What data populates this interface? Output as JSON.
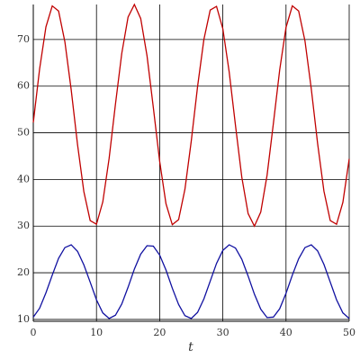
{
  "chart_data": {
    "type": "line",
    "x_label": "t",
    "x": [
      0,
      1,
      2,
      3,
      4,
      5,
      6,
      7,
      8,
      9,
      10,
      11,
      12,
      13,
      14,
      15,
      16,
      17,
      18,
      19,
      20,
      21,
      22,
      23,
      24,
      25,
      26,
      27,
      28,
      29,
      30,
      31,
      32,
      33,
      34,
      35,
      36,
      37,
      38,
      39,
      40,
      41,
      42,
      43,
      44,
      45,
      46,
      47,
      48,
      49,
      50
    ],
    "series": [
      {
        "color": "#c00000",
        "values": [
          52.2,
          63.7,
          72.7,
          77.2,
          76.1,
          69.5,
          59.2,
          47.5,
          37.4,
          31.2,
          30.4,
          35.2,
          44.5,
          56.1,
          67.0,
          74.8,
          77.5,
          74.5,
          66.5,
          55.4,
          43.9,
          34.8,
          30.3,
          31.4,
          37.9,
          48.2,
          59.9,
          70.0,
          76.3,
          77.1,
          72.3,
          63.1,
          51.6,
          40.5,
          32.7,
          30.0,
          33.0,
          40.9,
          52.0,
          63.5,
          72.6,
          77.2,
          76.1,
          69.7,
          59.4,
          47.7,
          37.5,
          31.2,
          30.4,
          35.1,
          44.4
        ]
      },
      {
        "color": "#1010a0",
        "values": [
          10.5,
          12.4,
          15.7,
          19.5,
          23.1,
          25.4,
          26.0,
          24.6,
          21.7,
          18.0,
          14.2,
          11.4,
          10.2,
          10.9,
          13.3,
          16.9,
          20.8,
          24.0,
          25.8,
          25.7,
          23.8,
          20.6,
          16.7,
          13.2,
          10.8,
          10.2,
          11.5,
          14.4,
          18.2,
          22.0,
          24.8,
          26.0,
          25.3,
          22.9,
          19.3,
          15.4,
          12.2,
          10.4,
          10.5,
          12.3,
          15.6,
          19.5,
          23.0,
          25.4,
          26.0,
          24.7,
          21.8,
          18.0,
          14.2,
          11.4,
          10.2
        ]
      }
    ],
    "xlim": [
      0,
      50
    ],
    "xticks": [
      0,
      10,
      20,
      30,
      40,
      50
    ],
    "ylim": [
      9.6,
      77.5
    ],
    "yticks": [
      10,
      20,
      30,
      40,
      50,
      60,
      70
    ],
    "grid": true
  }
}
